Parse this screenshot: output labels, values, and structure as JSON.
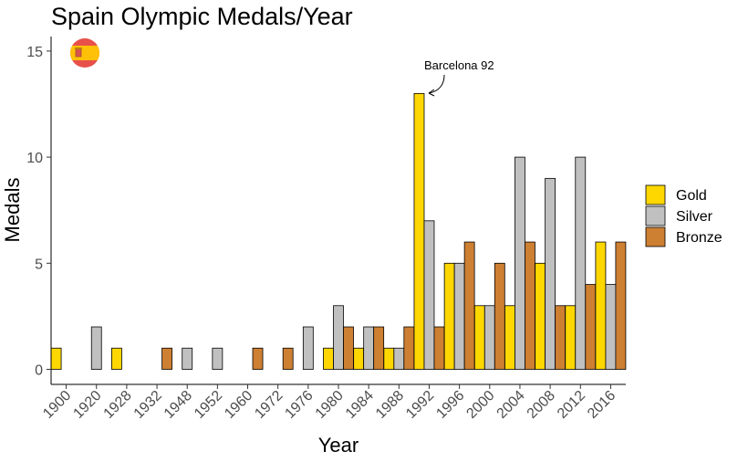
{
  "chart_data": {
    "type": "bar",
    "title": "Spain Olympic Medals/Year",
    "xlabel": "Year",
    "ylabel": "Medals",
    "ylim": [
      0,
      15.6
    ],
    "yticks": [
      0,
      5,
      10,
      15
    ],
    "grid": false,
    "legend_position": "right",
    "categories": [
      "1900",
      "1920",
      "1928",
      "1932",
      "1948",
      "1952",
      "1960",
      "1972",
      "1976",
      "1980",
      "1984",
      "1988",
      "1992",
      "1996",
      "2000",
      "2004",
      "2008",
      "2012",
      "2016"
    ],
    "series": [
      {
        "name": "Gold",
        "color": "#FFD700",
        "values": [
          1,
          0,
          1,
          0,
          0,
          0,
          0,
          0,
          0,
          1,
          1,
          1,
          13,
          5,
          3,
          3,
          5,
          3,
          6
        ]
      },
      {
        "name": "Silver",
        "color": "#C0C0C0",
        "values": [
          0,
          2,
          0,
          0,
          1,
          1,
          0,
          0,
          2,
          3,
          2,
          1,
          7,
          5,
          3,
          10,
          9,
          10,
          4
        ]
      },
      {
        "name": "Bronze",
        "color": "#CD7F32",
        "values": [
          0,
          0,
          0,
          1,
          0,
          0,
          1,
          1,
          0,
          2,
          2,
          2,
          2,
          6,
          5,
          6,
          3,
          4,
          6
        ]
      }
    ],
    "annotation": {
      "text": "Barcelona 92",
      "category": "1992",
      "series": "Gold",
      "value": 13
    },
    "flag_icon": "spain-flag-icon"
  }
}
